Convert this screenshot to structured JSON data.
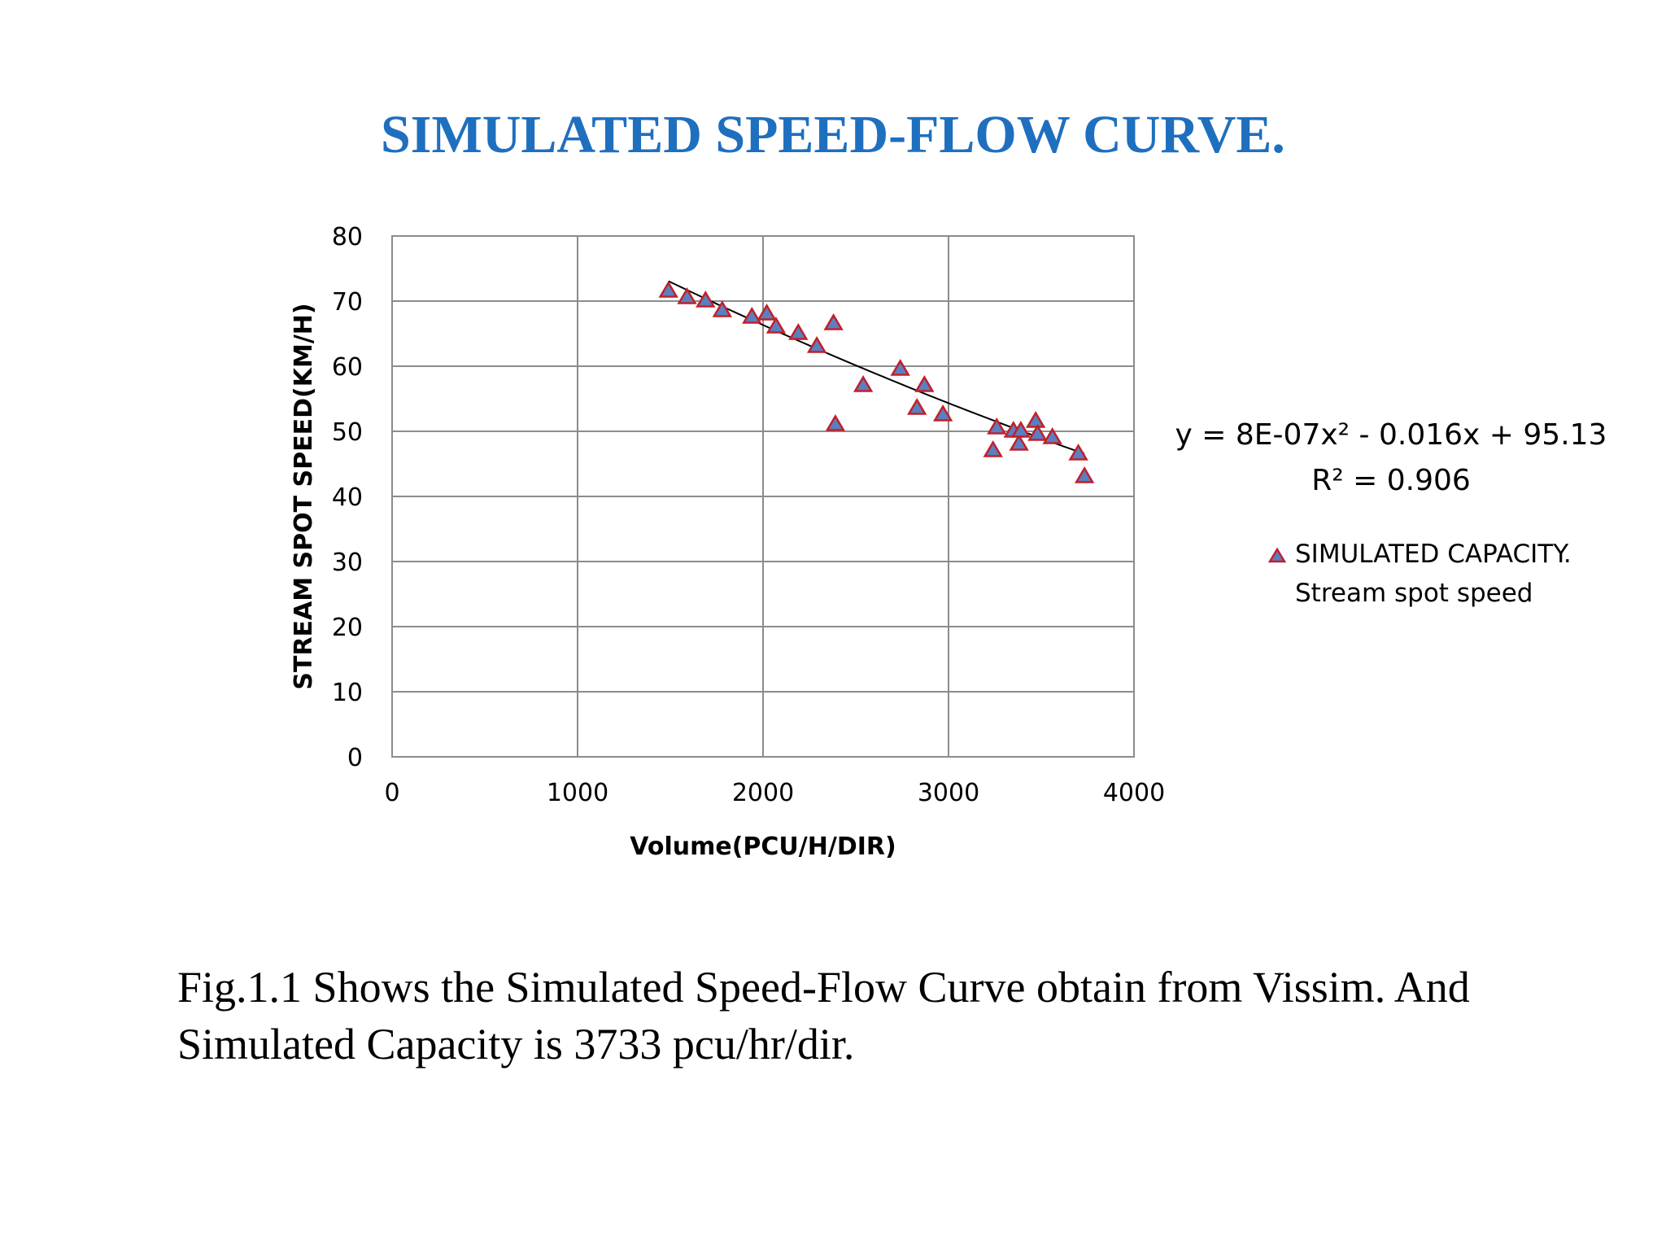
{
  "slide": {
    "title": "SIMULATED SPEED-FLOW CURVE.",
    "caption": "Fig.1.1 Shows the Simulated Speed-Flow Curve obtain from Vissim. And Simulated Capacity is 3733 pcu/hr/dir."
  },
  "chart_data": {
    "type": "scatter",
    "xlabel": "Volume(PCU/H/DIR)",
    "ylabel": "STREAM SPOT SPEED(KM/H)",
    "xlim": [
      0,
      4000
    ],
    "ylim": [
      0,
      80
    ],
    "x_ticks": [
      "0",
      "1000",
      "2000",
      "3000",
      "4000"
    ],
    "y_ticks": [
      "0",
      "10",
      "20",
      "30",
      "40",
      "50",
      "60",
      "70",
      "80"
    ],
    "grid": true,
    "legend_position": "right",
    "series": [
      {
        "name": "SIMULATED CAPACITY. Stream spot speed",
        "legend_lines": [
          "SIMULATED CAPACITY.",
          "Stream spot speed"
        ],
        "marker": "triangle",
        "fill_color": "#5b7fc0",
        "edge_color": "#c0202a",
        "x": [
          1490,
          1590,
          1690,
          1780,
          1940,
          2020,
          2070,
          2190,
          2290,
          2380,
          2390,
          2540,
          2740,
          2830,
          2870,
          2970,
          3240,
          3260,
          3350,
          3380,
          3390,
          3470,
          3480,
          3560,
          3700,
          3733
        ],
        "y": [
          71.5,
          70.5,
          70,
          68.5,
          67.5,
          68,
          66,
          65,
          63,
          66.5,
          51,
          57,
          59.5,
          53.5,
          57,
          52.5,
          47,
          50.5,
          50,
          48,
          50,
          51.5,
          49.5,
          49,
          46.5,
          43
        ]
      }
    ],
    "trendline": {
      "type": "polynomial",
      "coefficients": {
        "a": 8e-07,
        "b": -0.016,
        "c": 95.13
      },
      "x_range": [
        1490,
        3733
      ],
      "equation_text": "y = 8E-07x² - 0.016x + 95.13",
      "r2_text": "R² = 0.906",
      "color": "#000000"
    }
  }
}
